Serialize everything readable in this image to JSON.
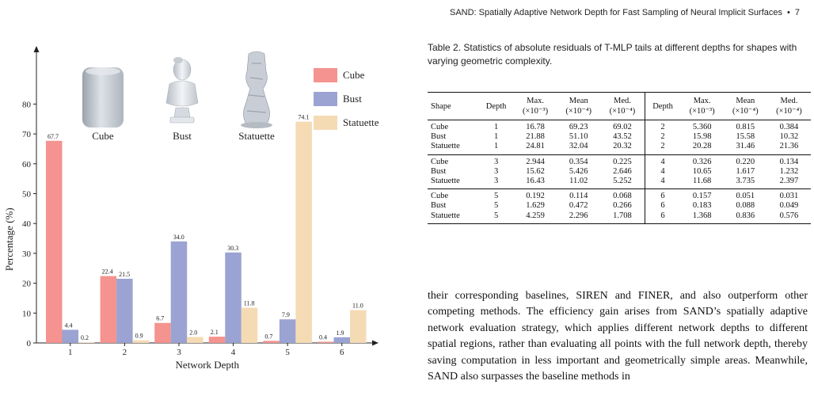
{
  "header": {
    "running_title": "SAND: Spatially Adaptive Network Depth for Fast Sampling of Neural Implicit Surfaces",
    "page_number": "7"
  },
  "chart_data": {
    "type": "bar",
    "categories": [
      "1",
      "2",
      "3",
      "4",
      "5",
      "6"
    ],
    "series": [
      {
        "name": "Cube",
        "values": [
          67.7,
          22.4,
          6.7,
          2.1,
          0.7,
          0.4
        ],
        "labels": [
          "67.7",
          "22.4",
          "6.7",
          "2.1",
          "0.7",
          "0.4"
        ],
        "color": "#f4938f"
      },
      {
        "name": "Bust",
        "values": [
          4.4,
          21.5,
          34.0,
          30.3,
          7.9,
          1.9
        ],
        "labels": [
          "4.4",
          "21.5",
          "34.0",
          "30.3",
          "7.9",
          "1.9"
        ],
        "color": "#9aa3d2"
      },
      {
        "name": "Statuette",
        "values": [
          0.2,
          0.9,
          2.0,
          11.8,
          74.1,
          11.0
        ],
        "labels": [
          "0.2",
          "0.9",
          "2.0",
          "11.8",
          "74.1",
          "11.0"
        ],
        "color": "#f5dbb4"
      }
    ],
    "xlabel": "Network Depth",
    "ylabel": "Percentage (%)",
    "ylim": [
      0,
      100
    ],
    "yticks": [
      0,
      10,
      20,
      30,
      40,
      50,
      60,
      70,
      80
    ],
    "ytick_labels": [
      "0",
      "10",
      "20",
      "30",
      "40",
      "50",
      "60",
      "70",
      "80"
    ],
    "legend_position": "top-right",
    "grid": false,
    "shape_labels": [
      "Cube",
      "Bust",
      "Statuette"
    ]
  },
  "table": {
    "caption": "Table 2. Statistics of absolute residuals of T-MLP tails at different depths for shapes with varying geometric complexity.",
    "headers": {
      "shape": "Shape",
      "depth": "Depth",
      "max": "Max.",
      "mean": "Mean",
      "med": "Med.",
      "scale_max": "(×10⁻³)",
      "scale_mean": "(×10⁻⁴)",
      "scale_med": "(×10⁻⁴)"
    },
    "groups": [
      [
        [
          "Cube",
          "1",
          "16.78",
          "69.23",
          "69.02",
          "2",
          "5.360",
          "0.815",
          "0.384"
        ],
        [
          "Bust",
          "1",
          "21.88",
          "51.10",
          "43.52",
          "2",
          "15.98",
          "15.58",
          "10.32"
        ],
        [
          "Statuette",
          "1",
          "24.81",
          "32.04",
          "20.32",
          "2",
          "20.28",
          "31.46",
          "21.36"
        ]
      ],
      [
        [
          "Cube",
          "3",
          "2.944",
          "0.354",
          "0.225",
          "4",
          "0.326",
          "0.220",
          "0.134"
        ],
        [
          "Bust",
          "3",
          "15.62",
          "5.426",
          "2.646",
          "4",
          "10.65",
          "1.617",
          "1.232"
        ],
        [
          "Statuette",
          "3",
          "16.43",
          "11.02",
          "5.252",
          "4",
          "11.68",
          "3.735",
          "2.397"
        ]
      ],
      [
        [
          "Cube",
          "5",
          "0.192",
          "0.114",
          "0.068",
          "6",
          "0.157",
          "0.051",
          "0.031"
        ],
        [
          "Bust",
          "5",
          "1.629",
          "0.472",
          "0.266",
          "6",
          "0.183",
          "0.088",
          "0.049"
        ],
        [
          "Statuette",
          "5",
          "4.259",
          "2.296",
          "1.708",
          "6",
          "1.368",
          "0.836",
          "0.576"
        ]
      ]
    ]
  },
  "body_text": "their corresponding baselines, SIREN and FINER, and also outperform other competing methods. The efficiency gain arises from SAND’s spatially adaptive network evaluation strategy, which applies different network depths to different spatial regions, rather than evaluating all points with the full network depth, thereby saving computation in less important and geometrically simple areas. Meanwhile, SAND also surpasses the baseline methods in"
}
